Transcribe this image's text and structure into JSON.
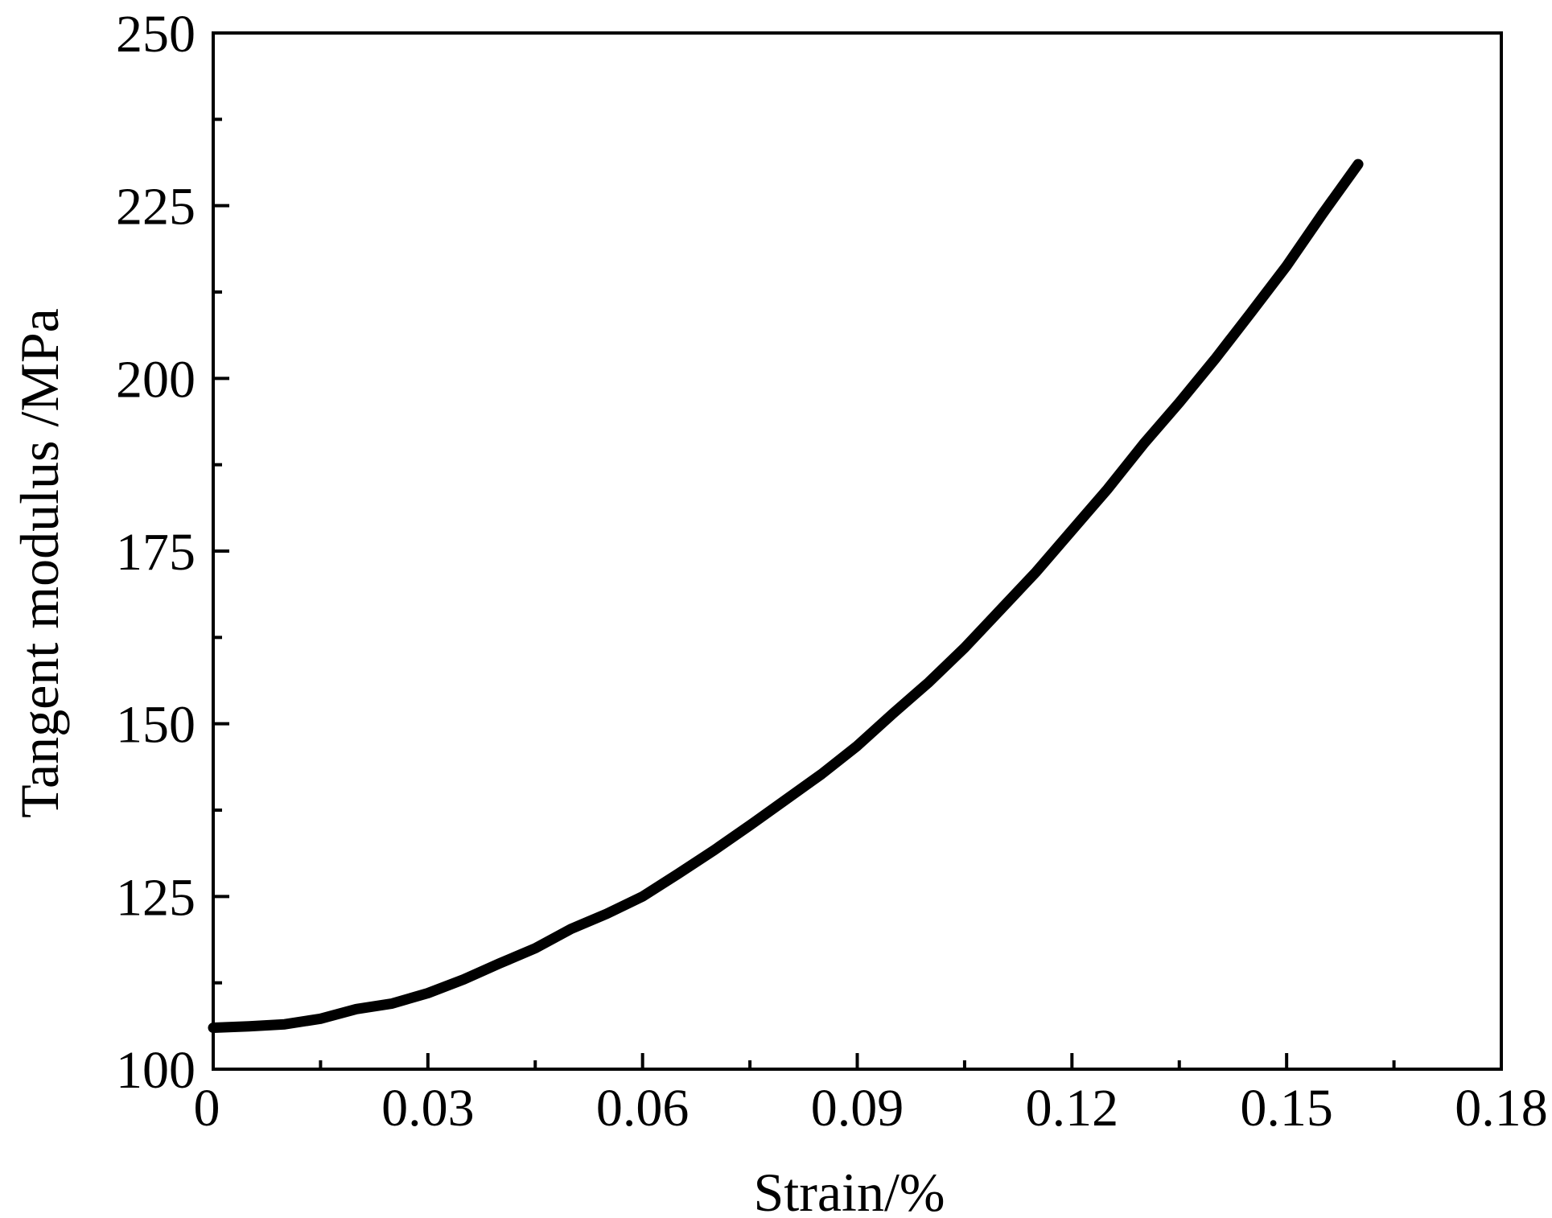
{
  "chart_data": {
    "type": "line",
    "title": "",
    "xlabel": "Strain/%",
    "ylabel": "Tangent modulus /MPa",
    "xlim": [
      0,
      0.18
    ],
    "ylim": [
      100,
      250
    ],
    "x_ticks": [
      0,
      0.03,
      0.06,
      0.09,
      0.12,
      0.15,
      0.18
    ],
    "x_tick_labels": [
      "0",
      "0.03",
      "0.06",
      "0.09",
      "0.12",
      "0.15",
      "0.18"
    ],
    "y_ticks": [
      100,
      125,
      150,
      175,
      200,
      225,
      250
    ],
    "y_tick_labels": [
      "100",
      "125",
      "150",
      "175",
      "200",
      "225",
      "250"
    ],
    "grid": false,
    "legend": "none",
    "series": [
      {
        "color": "#000000",
        "x": [
          0,
          0.005,
          0.01,
          0.015,
          0.02,
          0.025,
          0.03,
          0.035,
          0.04,
          0.045,
          0.05,
          0.055,
          0.06,
          0.065,
          0.07,
          0.075,
          0.08,
          0.085,
          0.09,
          0.095,
          0.1,
          0.105,
          0.11,
          0.115,
          0.12,
          0.125,
          0.13,
          0.135,
          0.14,
          0.145,
          0.15,
          0.155,
          0.16
        ],
        "y": [
          106,
          106.2,
          106.5,
          107.3,
          108.7,
          109.5,
          111,
          113,
          115.3,
          117.5,
          120.3,
          122.5,
          125,
          128.3,
          131.7,
          135.3,
          139,
          142.7,
          146.8,
          151.5,
          156,
          161,
          166.5,
          172,
          178,
          184,
          190.5,
          196.5,
          202.8,
          209.5,
          216.3,
          223.8,
          231
        ]
      }
    ]
  }
}
